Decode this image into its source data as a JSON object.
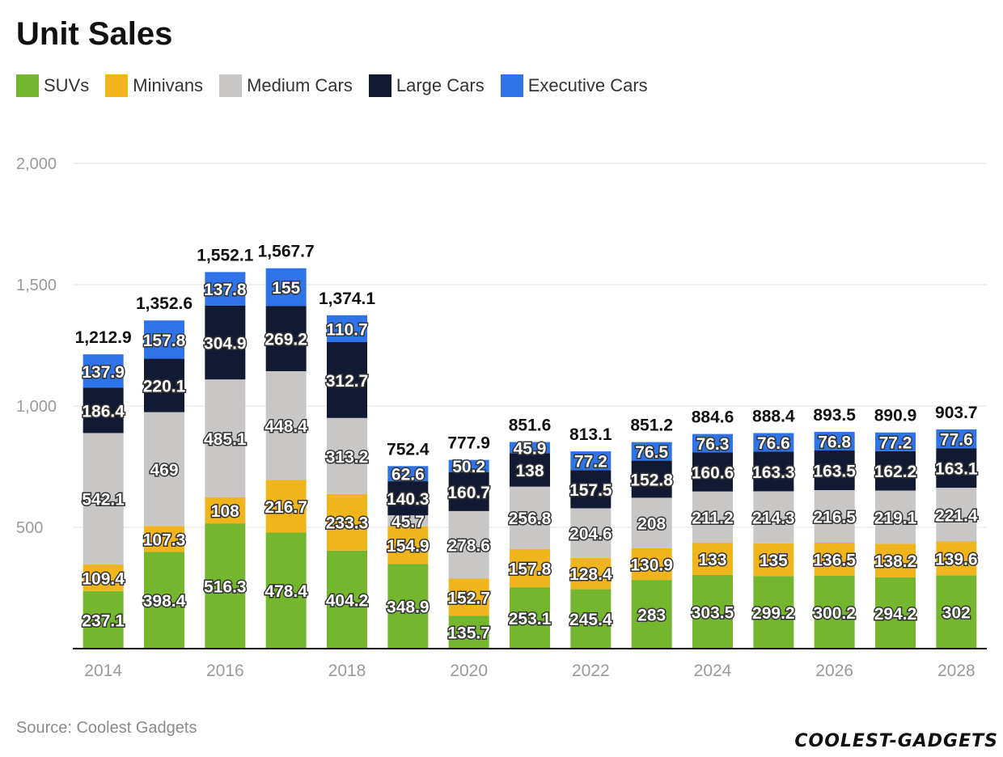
{
  "title": "Unit Sales",
  "source": "Source: Coolest Gadgets",
  "logo": "COOLEST-GADGETS",
  "chart_data": {
    "type": "bar",
    "stacked": true,
    "title": "Unit Sales",
    "xlabel": "",
    "ylabel": "",
    "ylim": [
      0,
      2000
    ],
    "yticks": [
      500,
      1000,
      1500,
      2000
    ],
    "ytick_labels": [
      "500",
      "1,000",
      "1,500",
      "2,000"
    ],
    "grid": true,
    "legend": "top-left",
    "categories": [
      "2014",
      "2015",
      "2016",
      "2017",
      "2018",
      "2019",
      "2020",
      "2021",
      "2022",
      "2023",
      "2024",
      "2025",
      "2026",
      "2027",
      "2028"
    ],
    "xtick_labels": [
      "2014",
      "",
      "2016",
      "",
      "2018",
      "",
      "2020",
      "",
      "2022",
      "",
      "2024",
      "",
      "2026",
      "",
      "2028"
    ],
    "series": [
      {
        "name": "SUVs",
        "color": "#74b72e",
        "values": [
          237.1,
          398.4,
          516.3,
          478.4,
          404.2,
          348.9,
          135.7,
          253.1,
          245.4,
          283,
          303.5,
          299.2,
          300.2,
          294.2,
          302
        ]
      },
      {
        "name": "Minivans",
        "color": "#f0b41c",
        "values": [
          109.4,
          107.3,
          108,
          216.7,
          233.3,
          154.9,
          152.7,
          157.8,
          128.4,
          130.9,
          133,
          135,
          136.5,
          138.2,
          139.6
        ]
      },
      {
        "name": "Medium Cars",
        "color": "#c8c7c6",
        "values": [
          542.1,
          469,
          485.1,
          448.4,
          313.2,
          45.7,
          278.6,
          256.8,
          204.6,
          208,
          211.2,
          214.3,
          216.5,
          219.1,
          221.4
        ]
      },
      {
        "name": "Large Cars",
        "color": "#121a33",
        "values": [
          186.4,
          220.1,
          304.9,
          269.2,
          312.7,
          140.3,
          160.7,
          138,
          157.5,
          152.8,
          160.6,
          163.3,
          163.5,
          162.2,
          163.1
        ]
      },
      {
        "name": "Executive Cars",
        "color": "#2e74e8",
        "values": [
          137.9,
          157.8,
          137.8,
          155,
          110.7,
          62.6,
          50.2,
          45.9,
          77.2,
          76.5,
          76.3,
          76.6,
          76.8,
          77.2,
          77.6
        ]
      }
    ],
    "total_labels": [
      "1,212.9",
      "1,352.6",
      "1,552.1",
      "1,567.7",
      "1,374.1",
      "752.4",
      "777.9",
      "851.6",
      "813.1",
      "851.2",
      "884.6",
      "888.4",
      "893.5",
      "890.9",
      "903.7"
    ]
  }
}
